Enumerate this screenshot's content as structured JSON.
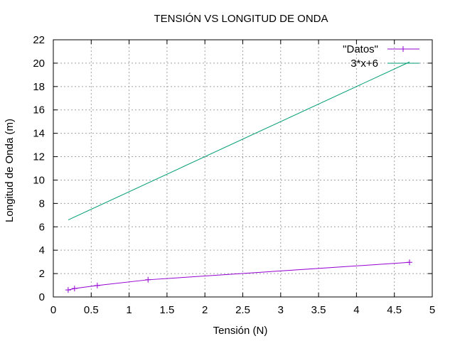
{
  "chart_data": {
    "type": "line",
    "title": "TENSIÓN VS LONGITUD DE ONDA",
    "xlabel": "Tensión (N)",
    "ylabel": "Longitud de Onda (m)",
    "xlim": [
      0,
      5
    ],
    "ylim": [
      0,
      22
    ],
    "xticks": [
      0,
      0.5,
      1,
      1.5,
      2,
      2.5,
      3,
      3.5,
      4,
      4.5,
      5
    ],
    "yticks": [
      0,
      2,
      4,
      6,
      8,
      10,
      12,
      14,
      16,
      18,
      20,
      22
    ],
    "xtick_labels": [
      "0",
      "0.5",
      "1",
      "1.5",
      "2",
      "2.5",
      "3",
      "3.5",
      "4",
      "4.5",
      "5"
    ],
    "ytick_labels": [
      "0",
      "2",
      "4",
      "6",
      "8",
      "10",
      "12",
      "14",
      "16",
      "18",
      "20",
      "22"
    ],
    "grid": true,
    "legend_position": "top-right",
    "series": [
      {
        "name": "\"Datos\"",
        "color": "#9400d3",
        "marker": "plus",
        "points": [
          [
            0.196,
            0.6
          ],
          [
            0.28,
            0.72
          ],
          [
            0.58,
            0.98
          ],
          [
            1.25,
            1.47
          ],
          [
            4.7,
            2.96
          ]
        ]
      },
      {
        "name": "3*x+6",
        "color": "#009e73",
        "marker": "none",
        "function": "3*x+6",
        "points": [
          [
            0.196,
            6.59
          ],
          [
            4.7,
            20.1
          ]
        ]
      }
    ]
  }
}
